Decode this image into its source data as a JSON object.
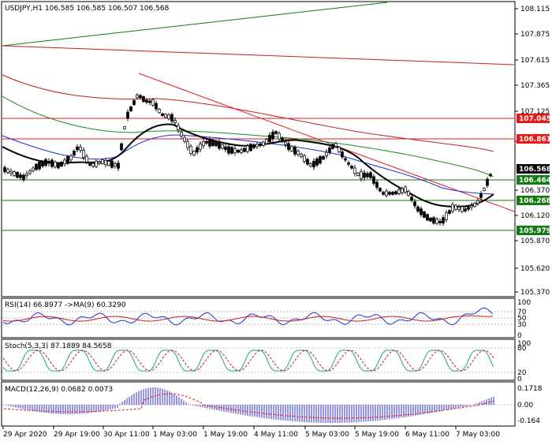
{
  "main": {
    "title": "USDJPY,H1  106.585 106.585 106.507 106.568",
    "price_scale": [
      "108.115",
      "107.875",
      "107.615",
      "107.365",
      "107.125",
      "106.620",
      "106.370",
      "106.120",
      "105.870",
      "105.620",
      "105.370"
    ],
    "price_labels": [
      {
        "text": "107.045",
        "color": "#e31b1b"
      },
      {
        "text": "106.861",
        "color": "#e31b1b"
      },
      {
        "text": "106.568",
        "color": "#000000"
      },
      {
        "text": "106.464",
        "color": "#127b12"
      },
      {
        "text": "106.268",
        "color": "#127b12"
      },
      {
        "text": "105.979",
        "color": "#127b12"
      }
    ]
  },
  "rsi": {
    "title": "RSI(14) 66.8977  ->MA(9) 60.3290",
    "scale": [
      "100",
      "70",
      "50",
      "30",
      "0"
    ]
  },
  "stoch": {
    "title": "Stoch(5,3,3) 87.1889 84.5658",
    "scale": [
      "100",
      "80",
      "20",
      "0"
    ]
  },
  "macd": {
    "title": "MACD(12,26,9) 0.0682 0.0073",
    "scale": [
      "0.1718",
      "0.00",
      "-0.164"
    ]
  },
  "time_axis": [
    "29 Apr 2020",
    "29 Apr 19:00",
    "30 Apr 11:00",
    "1 May 03:00",
    "1 May 19:00",
    "4 May 11:00",
    "5 May 03:00",
    "5 May 19:00",
    "6 May 11:00",
    "7 May 03:00"
  ],
  "colors": {
    "bear_line": "#e31b1b",
    "support_line": "#127b12",
    "ma_fast": "#000000",
    "ma_blue": "#1f2fd6",
    "ma_green": "#1a8a1a",
    "ma_red": "#c41e1e",
    "candle": "#000000"
  }
}
